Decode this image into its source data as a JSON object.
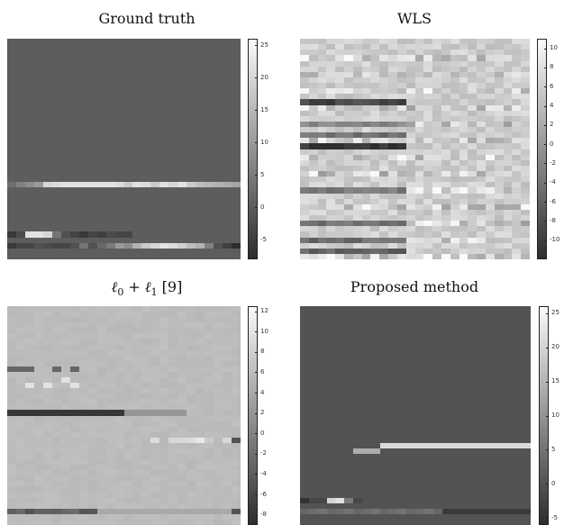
{
  "chart_data": [
    {
      "type": "heatmap",
      "title": "Ground truth",
      "colormap": "gray",
      "colorbar": {
        "min": -8,
        "max": 26,
        "ticks": [
          -5,
          0,
          5,
          10,
          15,
          20,
          25
        ]
      },
      "background": 0,
      "bands": [
        {
          "row": 26,
          "cells": [
            [
              0,
              3
            ],
            [
              1,
              6
            ],
            [
              2,
              8
            ],
            [
              3,
              10
            ],
            [
              4,
              20
            ],
            [
              5,
              21
            ],
            [
              6,
              22
            ],
            [
              7,
              22
            ],
            [
              8,
              22
            ],
            [
              9,
              22
            ],
            [
              10,
              22
            ],
            [
              11,
              22
            ],
            [
              12,
              21
            ],
            [
              13,
              18
            ],
            [
              14,
              22
            ],
            [
              15,
              21
            ],
            [
              16,
              18
            ],
            [
              17,
              22
            ],
            [
              18,
              20
            ],
            [
              19,
              22
            ],
            [
              20,
              18
            ],
            [
              21,
              16
            ],
            [
              22,
              15
            ],
            [
              23,
              14
            ],
            [
              24,
              13
            ],
            [
              25,
              12
            ]
          ]
        },
        {
          "row": 35,
          "cells": [
            [
              0,
              -6
            ],
            [
              1,
              -3
            ],
            [
              2,
              22
            ],
            [
              3,
              22
            ],
            [
              4,
              20
            ],
            [
              5,
              4
            ],
            [
              6,
              -2
            ],
            [
              7,
              -4
            ],
            [
              8,
              -6
            ],
            [
              9,
              -4
            ],
            [
              10,
              -5
            ],
            [
              11,
              -3
            ],
            [
              12,
              -4
            ],
            [
              13,
              -4
            ]
          ]
        },
        {
          "row": 37,
          "cells": [
            [
              0,
              -6
            ],
            [
              1,
              -4
            ],
            [
              2,
              -4
            ],
            [
              3,
              -2
            ],
            [
              4,
              -3
            ],
            [
              5,
              -4
            ],
            [
              6,
              -4
            ],
            [
              7,
              -2
            ],
            [
              8,
              4
            ],
            [
              9,
              -2
            ],
            [
              10,
              2
            ],
            [
              11,
              5
            ],
            [
              12,
              10
            ],
            [
              13,
              8
            ],
            [
              14,
              14
            ],
            [
              15,
              18
            ],
            [
              16,
              20
            ],
            [
              17,
              22
            ],
            [
              18,
              21
            ],
            [
              19,
              19
            ],
            [
              20,
              16
            ],
            [
              21,
              14
            ],
            [
              22,
              6
            ],
            [
              23,
              -2
            ],
            [
              24,
              -5
            ],
            [
              25,
              -8
            ]
          ]
        }
      ]
    },
    {
      "type": "heatmap",
      "title": "WLS",
      "colormap": "gray",
      "colorbar": {
        "min": -12,
        "max": 11,
        "ticks": [
          -10,
          -8,
          -6,
          -4,
          -2,
          0,
          2,
          4,
          6,
          8,
          10
        ]
      },
      "background": 6
    },
    {
      "type": "heatmap",
      "title_main": "ℓ",
      "title_sub0": "0",
      "title_plus": " + ℓ",
      "title_sub1": "1",
      "title_ref": " [9]",
      "colormap": "gray",
      "colorbar": {
        "min": -9,
        "max": 12.5,
        "ticks": [
          -8,
          -6,
          -4,
          -2,
          0,
          2,
          4,
          6,
          8,
          10,
          12
        ]
      },
      "background": 6
    },
    {
      "type": "heatmap",
      "title": "Proposed method",
      "colormap": "gray",
      "colorbar": {
        "min": -6,
        "max": 26,
        "ticks": [
          -5,
          0,
          5,
          10,
          15,
          20,
          25
        ]
      },
      "background": 0
    }
  ]
}
